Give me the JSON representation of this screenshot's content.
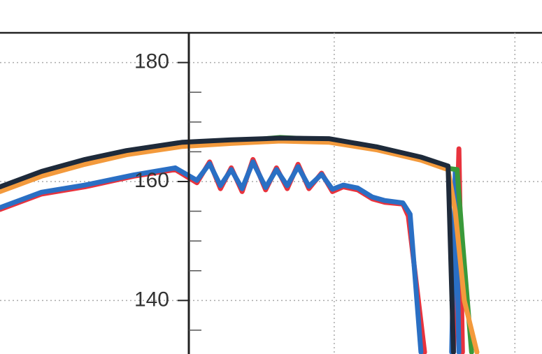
{
  "chart_data": {
    "type": "line",
    "xlim": [
      -0.85,
      2.15
    ],
    "xgrid": [
      1,
      2
    ],
    "ylim": [
      131,
      185
    ],
    "yticks": [
      140,
      160,
      180
    ],
    "yminorticks": [
      135,
      145,
      150,
      155,
      165,
      170,
      175
    ],
    "grid": true,
    "series": [
      {
        "color": "#e8333d",
        "x": [
          -0.85,
          -0.62,
          -0.38,
          -0.11,
          0.12,
          0.24,
          0.31,
          0.37,
          0.43,
          0.49,
          0.55,
          0.62,
          0.68,
          0.74,
          0.8,
          0.86,
          0.93,
          0.99,
          1.05,
          1.13,
          1.21,
          1.28,
          1.38,
          1.41,
          1.5,
          null,
          1.66,
          1.69,
          1.71
        ],
        "values": [
          155.3,
          157.9,
          159.1,
          160.9,
          162.0,
          159.8,
          163.3,
          158.8,
          162.3,
          158.3,
          163.7,
          158.6,
          162.3,
          158.8,
          162.9,
          158.8,
          161.4,
          158.3,
          159.1,
          158.6,
          157.1,
          156.5,
          156.2,
          154.2,
          131.3,
          null,
          131.3,
          165.5,
          131.3
        ]
      },
      {
        "color": "#2a6fc4",
        "x": [
          -0.85,
          -0.62,
          -0.38,
          -0.11,
          0.12,
          0.24,
          0.31,
          0.37,
          0.43,
          0.49,
          0.55,
          0.62,
          0.68,
          0.74,
          0.8,
          0.86,
          0.93,
          0.99,
          1.05,
          1.13,
          1.21,
          1.28,
          1.38,
          1.42,
          1.48,
          null,
          1.65,
          1.67,
          1.69
        ],
        "values": [
          155.6,
          158.2,
          159.4,
          161.1,
          162.3,
          160.2,
          163.0,
          159.3,
          162.0,
          158.8,
          163.3,
          159.0,
          162.0,
          159.3,
          162.5,
          159.2,
          161.2,
          158.7,
          159.4,
          158.9,
          157.4,
          156.8,
          156.4,
          154.5,
          131.3,
          null,
          131.3,
          162.0,
          131.3
        ]
      },
      {
        "color": "#3a9a3a",
        "x": [
          -0.85,
          -0.62,
          -0.38,
          -0.15,
          0.16,
          0.43,
          0.7,
          0.97,
          1.24,
          1.48,
          1.63,
          1.68,
          1.71,
          1.76
        ],
        "values": [
          158.6,
          161.2,
          163.2,
          164.8,
          166.2,
          166.7,
          167.4,
          167.0,
          165.8,
          164.0,
          162.2,
          162.0,
          150.0,
          131.3
        ]
      },
      {
        "color": "#f39a3c",
        "x": [
          -0.85,
          -0.62,
          -0.38,
          -0.15,
          0.16,
          0.43,
          0.7,
          0.97,
          1.24,
          1.48,
          1.63,
          1.67,
          1.72,
          1.79
        ],
        "values": [
          158.3,
          160.9,
          162.9,
          164.5,
          165.9,
          166.4,
          166.8,
          166.6,
          165.3,
          163.6,
          162.0,
          155.0,
          140.0,
          131.3
        ]
      },
      {
        "color": "#1e2a3a",
        "x": [
          -0.85,
          -0.62,
          -0.38,
          -0.15,
          0.16,
          0.43,
          0.7,
          0.97,
          1.24,
          1.48,
          1.63,
          1.66
        ],
        "values": [
          159.1,
          161.7,
          163.7,
          165.2,
          166.6,
          167.0,
          167.3,
          167.2,
          165.8,
          164.1,
          162.6,
          131.3
        ]
      }
    ]
  }
}
